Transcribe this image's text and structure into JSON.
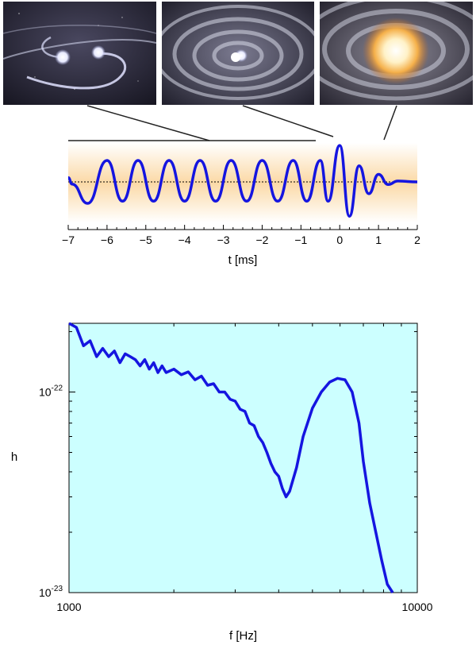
{
  "illustrations": [
    {
      "icon": "binary-inspiral-icon"
    },
    {
      "icon": "binary-merger-icon"
    },
    {
      "icon": "merger-remnant-glow-icon"
    }
  ],
  "chart_data": [
    {
      "type": "line",
      "title": "",
      "xlabel": "t [ms]",
      "ylabel": "",
      "xlim": [
        -7,
        2
      ],
      "xticks": [
        -7,
        -6,
        -5,
        -4,
        -3,
        -2,
        -1,
        0,
        1,
        2
      ],
      "xtick_labels": [
        "−7",
        "−6",
        "−5",
        "−4",
        "−3",
        "−2",
        "−1",
        "0",
        "1",
        "2"
      ],
      "grid": false,
      "legend": "none",
      "line_color": "#1515e0",
      "background": "orange-gradient band",
      "series": [
        {
          "x": [
            -7.0,
            -6.9,
            -6.5,
            -6.0,
            -5.6,
            -5.2,
            -4.8,
            -4.4,
            -4.0,
            -3.6,
            -3.2,
            -2.8,
            -2.4,
            -2.0,
            -1.6,
            -1.2,
            -0.85,
            -0.5,
            -0.3,
            0.0,
            0.25,
            0.5,
            0.75,
            1.0,
            1.25,
            1.5,
            2.0
          ],
          "y": [
            0.2,
            -0.1,
            -1.0,
            1.0,
            -0.9,
            1.0,
            -0.9,
            1.0,
            -0.9,
            1.0,
            -0.9,
            1.0,
            -0.9,
            1.0,
            -0.9,
            1.0,
            -0.9,
            1.0,
            -0.9,
            1.7,
            -1.6,
            0.75,
            -0.55,
            0.35,
            -0.12,
            0.04,
            0.0
          ]
        }
      ]
    },
    {
      "type": "line",
      "title": "",
      "xlabel": "f [Hz]",
      "ylabel": "h",
      "xscale": "log",
      "yscale": "log",
      "xlim": [
        1000,
        10000
      ],
      "ylim": [
        1e-23,
        2.2e-22
      ],
      "xticks": [
        1000,
        10000
      ],
      "xtick_labels": [
        "1000",
        "10000"
      ],
      "ytick_labels": [
        {
          "value": 1e-22,
          "base": "10",
          "exponent": "-22"
        },
        {
          "value": 1e-23,
          "base": "10",
          "exponent": "-23"
        }
      ],
      "grid": false,
      "legend": "none",
      "line_color": "#1515e0",
      "background": "#ccffff",
      "series": [
        {
          "x": [
            1000,
            1050,
            1100,
            1150,
            1200,
            1250,
            1300,
            1350,
            1400,
            1450,
            1500,
            1550,
            1600,
            1650,
            1700,
            1750,
            1800,
            1850,
            1900,
            2000,
            2100,
            2200,
            2300,
            2400,
            2500,
            2600,
            2700,
            2800,
            2900,
            3000,
            3100,
            3200,
            3300,
            3400,
            3500,
            3600,
            3700,
            3800,
            3900,
            4000,
            4100,
            4200,
            4300,
            4500,
            4700,
            5000,
            5300,
            5600,
            5900,
            6200,
            6500,
            6800,
            7000,
            7300,
            7600,
            7900,
            8200,
            8500
          ],
          "y": [
            2.2e-22,
            2.1e-22,
            1.7e-22,
            1.8e-22,
            1.5e-22,
            1.65e-22,
            1.5e-22,
            1.6e-22,
            1.4e-22,
            1.55e-22,
            1.5e-22,
            1.45e-22,
            1.35e-22,
            1.45e-22,
            1.3e-22,
            1.4e-22,
            1.25e-22,
            1.35e-22,
            1.25e-22,
            1.3e-22,
            1.22e-22,
            1.26e-22,
            1.15e-22,
            1.2e-22,
            1.08e-22,
            1.1e-22,
            1e-22,
            1e-22,
            9.2e-23,
            9e-23,
            8.2e-23,
            8e-23,
            7e-23,
            6.8e-23,
            6e-23,
            5.6e-23,
            5e-23,
            4.4e-23,
            4e-23,
            3.8e-23,
            3.3e-23,
            3e-23,
            3.2e-23,
            4.2e-23,
            6e-23,
            8.3e-23,
            1e-22,
            1.12e-22,
            1.17e-22,
            1.15e-22,
            1e-22,
            7e-23,
            4.5e-23,
            2.8e-23,
            2e-23,
            1.45e-23,
            1.1e-23,
            9.5e-24
          ]
        }
      ]
    }
  ]
}
